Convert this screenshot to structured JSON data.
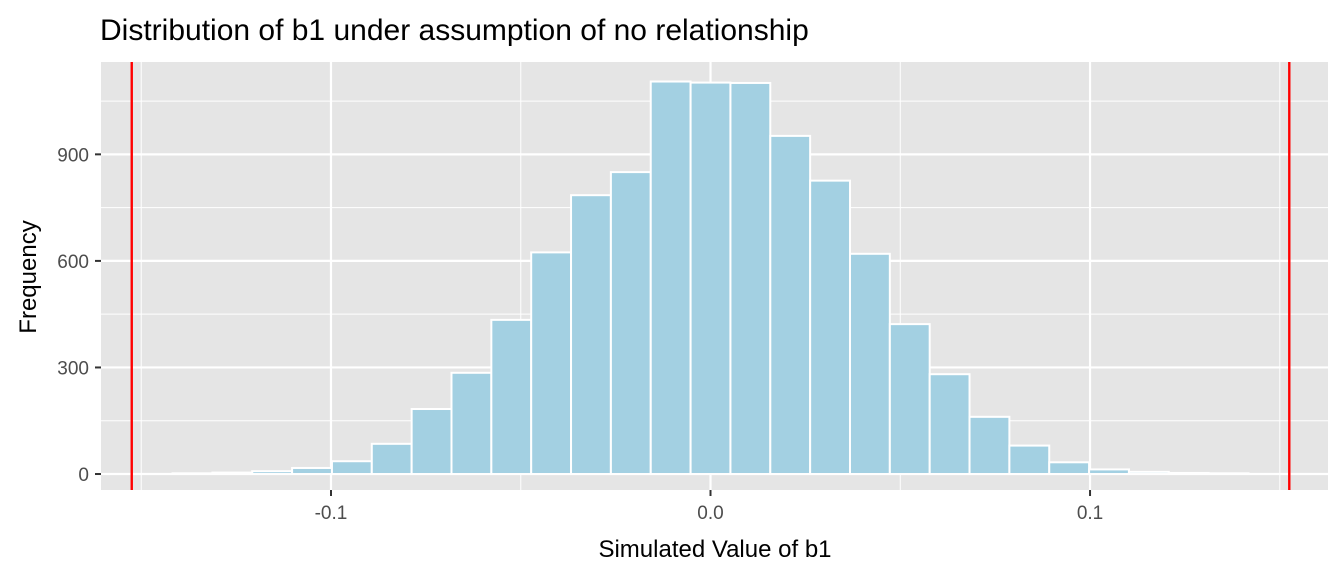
{
  "chart_data": {
    "type": "bar",
    "title": "Distribution of b1 under assumption of no relationship",
    "xlabel": "Simulated Value of b1",
    "ylabel": "Frequency",
    "xlim": [
      -0.1606,
      0.1627
    ],
    "ylim": [
      -45,
      1160
    ],
    "grid": true,
    "x_ticks": [
      {
        "value": -0.1,
        "label": "-0.1"
      },
      {
        "value": 0.0,
        "label": "0.0"
      },
      {
        "value": 0.1,
        "label": "0.1"
      }
    ],
    "y_ticks": [
      {
        "value": 0,
        "label": "0"
      },
      {
        "value": 300,
        "label": "300"
      },
      {
        "value": 600,
        "label": "600"
      },
      {
        "value": 900,
        "label": "900"
      }
    ],
    "bin_width": 0.0105,
    "bin_centers": [
      -0.1365,
      -0.126,
      -0.1155,
      -0.105,
      -0.0945,
      -0.084,
      -0.0735,
      -0.063,
      -0.0525,
      -0.042,
      -0.0315,
      -0.021,
      -0.0105,
      0.0,
      0.0105,
      0.021,
      0.0315,
      0.042,
      0.0525,
      0.063,
      0.0735,
      0.084,
      0.0945,
      0.105,
      0.1155,
      0.126,
      0.1365
    ],
    "values": [
      2,
      4,
      8,
      17,
      36,
      85,
      183,
      285,
      434,
      624,
      785,
      850,
      1105,
      1102,
      1101,
      952,
      826,
      620,
      422,
      281,
      161,
      80,
      33,
      13,
      6,
      3,
      2
    ],
    "bar_color": "#a3d0e2",
    "bar_outline": "#ffffff",
    "reference_lines": {
      "color": "#ff0000",
      "x": [
        -0.1525,
        0.1525
      ]
    },
    "panel_color": "#e5e5e5",
    "grid_color": "#ffffff"
  }
}
